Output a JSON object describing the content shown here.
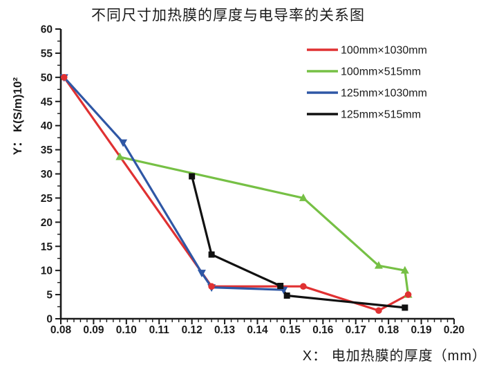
{
  "chart_data": {
    "type": "line",
    "title": "不同尺寸加热膜的厚度与电导率的关系图",
    "xlabel": "X： 电加热膜的厚度（mm）",
    "ylabel": "Y： K(S/m)10²",
    "xlim": [
      0.08,
      0.2
    ],
    "ylim": [
      0,
      60
    ],
    "x_major_step": 0.01,
    "x_minor_step": 0.002,
    "y_major_step": 5,
    "y_minor_step": 2.5,
    "grid": false,
    "legend_position": "top-right",
    "x_tick_labels": [
      "0.08",
      "0.09",
      "0.10",
      "0.11",
      "0.12",
      "0.13",
      "0.14",
      "0.15",
      "0.16",
      "0.17",
      "0.18",
      "0.19",
      "0.20"
    ],
    "y_tick_labels": [
      "0",
      "5",
      "10",
      "15",
      "20",
      "25",
      "30",
      "35",
      "40",
      "45",
      "50",
      "55",
      "60"
    ],
    "axis_color": "#1a1a1a",
    "series": [
      {
        "name": "100mm×1030mm",
        "color": "#e03132",
        "marker": "circle",
        "points": [
          [
            0.081,
            50
          ],
          [
            0.126,
            6.7
          ],
          [
            0.154,
            6.7
          ],
          [
            0.177,
            1.7
          ],
          [
            0.186,
            5.0
          ]
        ]
      },
      {
        "name": "100mm×515mm",
        "color": "#76c045",
        "marker": "triangle-up",
        "points": [
          [
            0.098,
            33.5
          ],
          [
            0.154,
            25.0
          ],
          [
            0.177,
            11.0
          ],
          [
            0.185,
            10.0
          ],
          [
            0.186,
            5.0
          ]
        ]
      },
      {
        "name": "125mm×1030mm",
        "color": "#2f57a5",
        "marker": "triangle-down",
        "points": [
          [
            0.081,
            50
          ],
          [
            0.099,
            36.5
          ],
          [
            0.123,
            9.5
          ],
          [
            0.126,
            6.5
          ],
          [
            0.148,
            6.0
          ]
        ]
      },
      {
        "name": "125mm×515mm",
        "color": "#111111",
        "marker": "square",
        "points": [
          [
            0.12,
            29.5
          ],
          [
            0.126,
            13.3
          ],
          [
            0.147,
            6.8
          ],
          [
            0.149,
            4.8
          ],
          [
            0.185,
            2.3
          ]
        ]
      }
    ]
  }
}
